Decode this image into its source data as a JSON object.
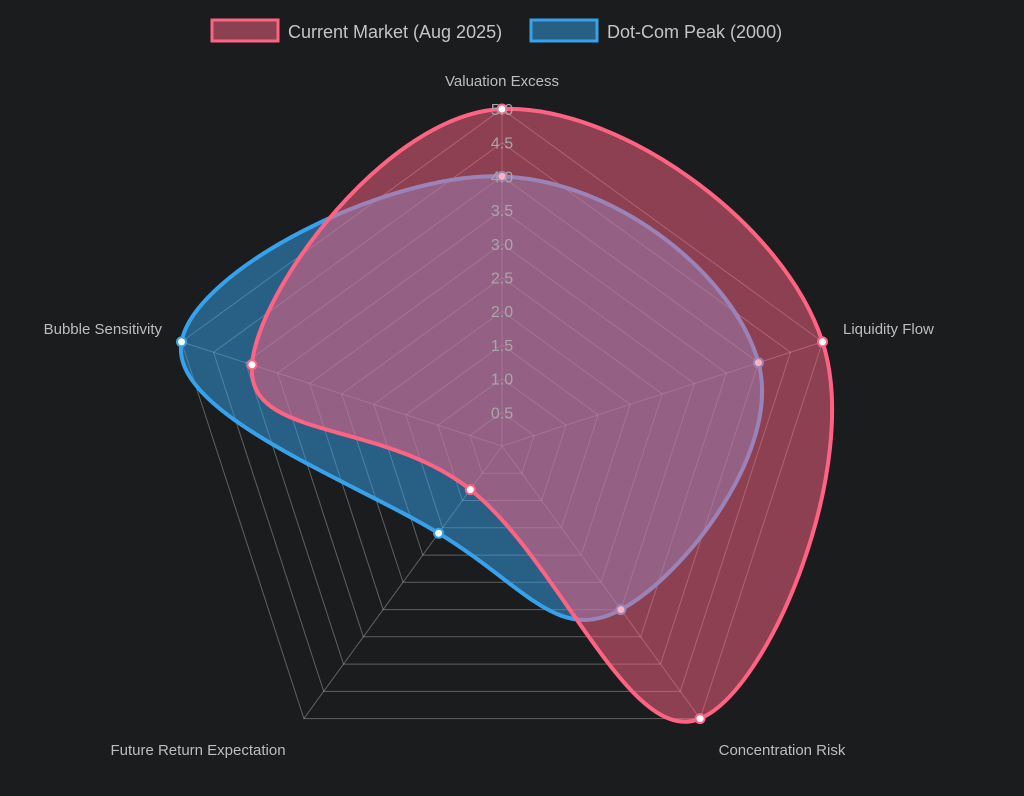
{
  "chart_data": {
    "type": "radar",
    "axes": [
      "Valuation Excess",
      "Liquidity Flow",
      "Concentration Risk",
      "Future Return Expectation",
      "Bubble Sensitivity"
    ],
    "range": [
      0,
      5
    ],
    "ticks": [
      "0.5",
      "1.0",
      "1.5",
      "2.0",
      "2.5",
      "3.0",
      "3.5",
      "4.0",
      "4.5",
      "5.0"
    ],
    "series": [
      {
        "name": "Current Market (Aug 2025)",
        "values": [
          5.0,
          5.0,
          5.0,
          0.8,
          3.9
        ],
        "color": "#ff6384",
        "fill": "rgba(255,99,132,0.5)"
      },
      {
        "name": "Dot-Com Peak (2000)",
        "values": [
          4.0,
          4.0,
          3.0,
          1.6,
          5.0
        ],
        "color": "#36a2eb",
        "fill": "rgba(54,162,235,0.5)"
      }
    ],
    "legend_position": "top",
    "grid": true
  }
}
